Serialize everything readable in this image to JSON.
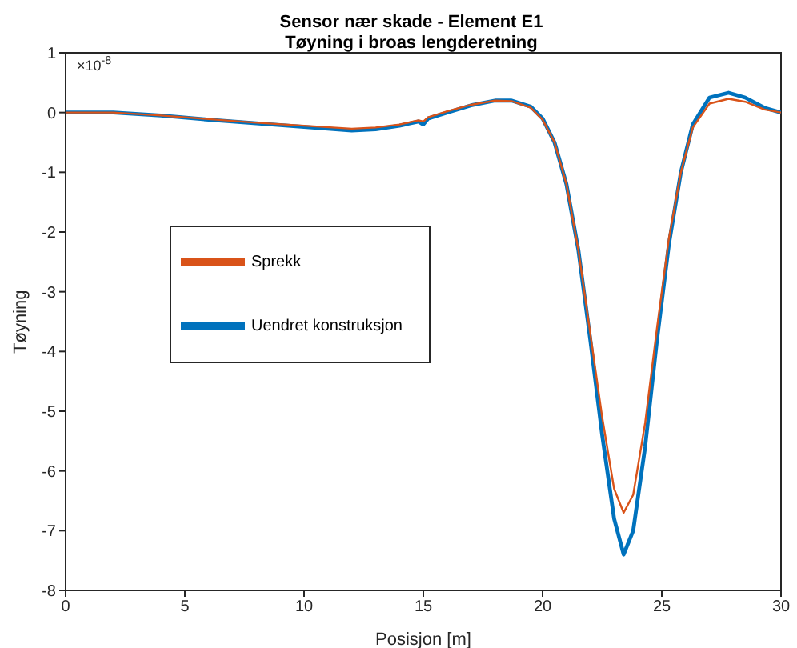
{
  "chart_data": {
    "type": "line",
    "title": "Sensor nær skade - Element E1",
    "subtitle": "Tøyning i broas lengderetning",
    "xlabel": "Posisjon [m]",
    "ylabel": "Tøyning",
    "annotations": [
      "×10$^{-8}$"
    ],
    "x": [
      0,
      2,
      4,
      6,
      8,
      10,
      12,
      13,
      14,
      14.8,
      15,
      15.2,
      16,
      17,
      18,
      18.7,
      19.5,
      20,
      20.5,
      21,
      21.5,
      22,
      22.5,
      23,
      23.4,
      23.8,
      24.3,
      24.8,
      25.3,
      25.8,
      26.3,
      27,
      27.8,
      28.5,
      29.3,
      30
    ],
    "series": [
      {
        "name": "Uendret konstruksjon",
        "color": "#0072bd",
        "values": [
          0,
          0,
          -0.05,
          -0.12,
          -0.18,
          -0.24,
          -0.3,
          -0.28,
          -0.22,
          -0.15,
          -0.2,
          -0.1,
          0,
          0.12,
          0.2,
          0.2,
          0.1,
          -0.1,
          -0.5,
          -1.2,
          -2.3,
          -3.8,
          -5.4,
          -6.8,
          -7.4,
          -7.0,
          -5.6,
          -3.8,
          -2.2,
          -1.0,
          -0.2,
          0.25,
          0.33,
          0.25,
          0.08,
          0
        ]
      },
      {
        "name": "Sprekk",
        "color": "#d95319",
        "values": [
          0,
          0,
          -0.05,
          -0.11,
          -0.17,
          -0.22,
          -0.27,
          -0.25,
          -0.2,
          -0.13,
          -0.15,
          -0.08,
          0.02,
          0.13,
          0.2,
          0.19,
          0.08,
          -0.12,
          -0.5,
          -1.2,
          -2.3,
          -3.7,
          -5.1,
          -6.3,
          -6.7,
          -6.4,
          -5.2,
          -3.6,
          -2.1,
          -1.0,
          -0.25,
          0.15,
          0.23,
          0.18,
          0.05,
          0
        ]
      }
    ],
    "xlim": [
      0,
      30
    ],
    "xticks": [
      0,
      5,
      10,
      15,
      20,
      25,
      30
    ],
    "ylim": [
      -8,
      1
    ],
    "yticks": [
      -8,
      -7,
      -6,
      -5,
      -4,
      -3,
      -2,
      -1,
      0,
      1
    ],
    "grid": false,
    "legend": "left",
    "line_style": "solid",
    "marker": "none"
  }
}
